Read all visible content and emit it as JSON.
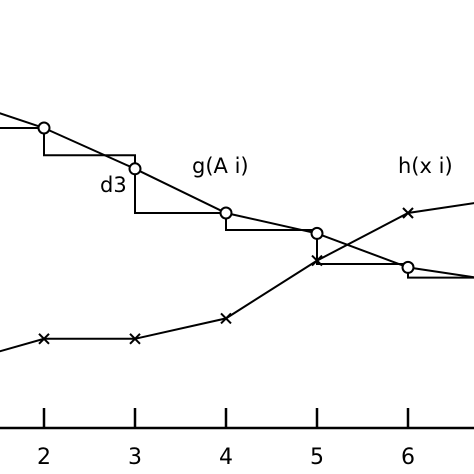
{
  "chart_data": {
    "type": "line",
    "x_ticks": [
      "2",
      "3",
      "4",
      "5",
      "6"
    ],
    "x_range": [
      0.55,
      6.75
    ],
    "y_range": [
      0,
      1
    ],
    "series": [
      {
        "name": "g(A i)",
        "marker": "circle",
        "points": [
          [
            0.55,
            0.93
          ],
          [
            2,
            0.8
          ],
          [
            3,
            0.68
          ],
          [
            4,
            0.55
          ],
          [
            5,
            0.49
          ],
          [
            6,
            0.39
          ],
          [
            6.75,
            0.36
          ]
        ]
      },
      {
        "name": "h(x i)",
        "marker": "x",
        "points": [
          [
            0.55,
            0.07
          ],
          [
            2,
            0.18
          ],
          [
            3,
            0.18
          ],
          [
            4,
            0.24
          ],
          [
            5,
            0.41
          ],
          [
            6,
            0.55
          ],
          [
            6.75,
            0.58
          ]
        ]
      }
    ],
    "annotations": [
      {
        "text": "d3",
        "x": 3,
        "y": 0.6
      }
    ],
    "staircase": [
      [
        [
          0.55,
          0.8
        ],
        [
          2,
          0.8
        ],
        [
          2,
          0.72
        ],
        [
          3,
          0.72
        ],
        [
          3,
          0.55
        ],
        [
          4,
          0.55
        ],
        [
          4,
          0.5
        ],
        [
          5,
          0.5
        ],
        [
          5,
          0.4
        ],
        [
          6,
          0.4
        ],
        [
          6,
          0.36
        ],
        [
          6.75,
          0.36
        ]
      ]
    ],
    "colors": {
      "ink": "#000000",
      "background": "#ffffff"
    }
  }
}
